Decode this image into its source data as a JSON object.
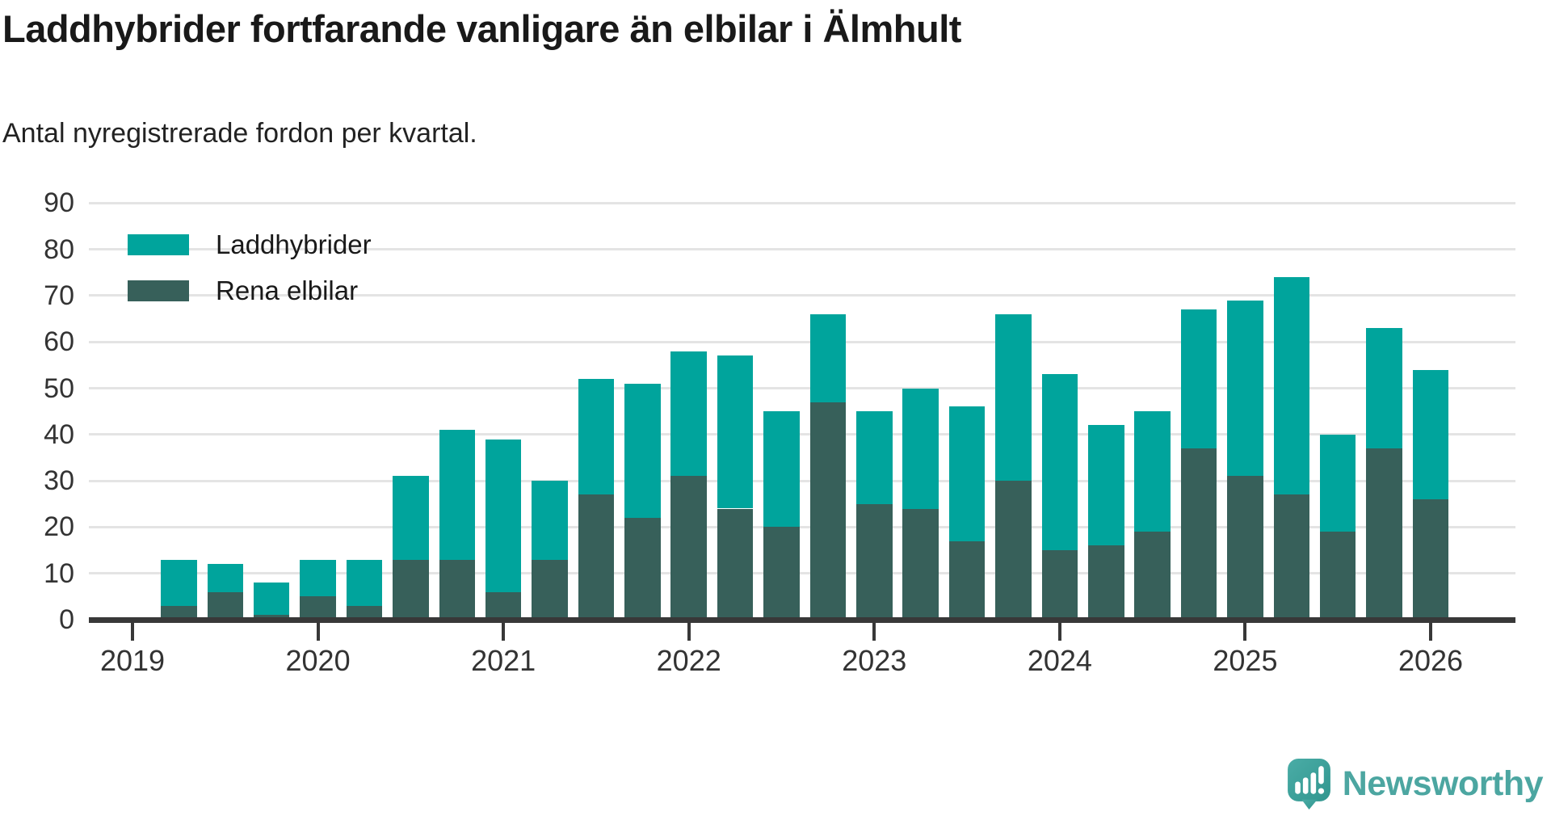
{
  "header": {
    "title": "Laddhybrider fortfarande vanligare än elbilar i Älmhult",
    "subtitle": "Antal nyregistrerade fordon per kvartal."
  },
  "legend": [
    {
      "label": "Laddhybrider",
      "color": "#00a49c"
    },
    {
      "label": "Rena elbilar",
      "color": "#37605a"
    }
  ],
  "footer": {
    "brand": "Newsworthy"
  },
  "colors": {
    "laddhybrider": "#00a49c",
    "rena_elbilar": "#37605a",
    "gridline": "#e4e4e4",
    "axis": "#383838",
    "brand_teal": "#4ca6a1"
  },
  "chart_data": {
    "type": "bar",
    "stacked": true,
    "title": "Laddhybrider fortfarande vanligare än elbilar i Älmhult",
    "subtitle": "Antal nyregistrerade fordon per kvartal.",
    "categories": [
      "2019-Q2",
      "2019-Q3",
      "2019-Q4",
      "2020-Q1",
      "2020-Q2",
      "2020-Q3",
      "2020-Q4",
      "2021-Q1",
      "2021-Q2",
      "2021-Q3",
      "2021-Q4",
      "2022-Q1",
      "2022-Q2",
      "2022-Q3",
      "2022-Q4",
      "2023-Q1",
      "2023-Q2",
      "2023-Q3",
      "2023-Q4",
      "2024-Q1",
      "2024-Q2",
      "2024-Q3",
      "2024-Q4",
      "2025-Q1",
      "2025-Q2",
      "2025-Q3",
      "2025-Q4",
      "2026-Q1"
    ],
    "series": [
      {
        "name": "Rena elbilar",
        "color": "#37605a",
        "stack_position": "bottom",
        "values": [
          3,
          6,
          1,
          5,
          3,
          13,
          13,
          6,
          13,
          27,
          22,
          31,
          24,
          20,
          47,
          25,
          24,
          17,
          30,
          15,
          16,
          19,
          37,
          31,
          27,
          19,
          37,
          26
        ]
      },
      {
        "name": "Laddhybrider",
        "color": "#00a49c",
        "stack_position": "top",
        "values": [
          10,
          6,
          7,
          8,
          10,
          18,
          28,
          33,
          17,
          25,
          29,
          27,
          33,
          25,
          19,
          20,
          26,
          29,
          36,
          38,
          26,
          26,
          30,
          38,
          47,
          21,
          26,
          28
        ]
      }
    ],
    "totals": [
      13,
      12,
      8,
      13,
      13,
      31,
      41,
      39,
      30,
      52,
      51,
      58,
      57,
      45,
      66,
      45,
      50,
      46,
      66,
      53,
      42,
      45,
      67,
      69,
      74,
      40,
      63,
      54
    ],
    "xlabel": "",
    "ylabel": "",
    "x_tick_labels": [
      "2019",
      "2020",
      "2021",
      "2022",
      "2023",
      "2024",
      "2025",
      "2026"
    ],
    "y_tick_labels": [
      "0",
      "10",
      "20",
      "30",
      "40",
      "50",
      "60",
      "70",
      "80",
      "90"
    ],
    "y_ticks": [
      0,
      10,
      20,
      30,
      40,
      50,
      60,
      70,
      80,
      90
    ],
    "ylim": [
      0,
      90
    ],
    "grid": "horizontal",
    "legend_position": "top-left-inside"
  }
}
